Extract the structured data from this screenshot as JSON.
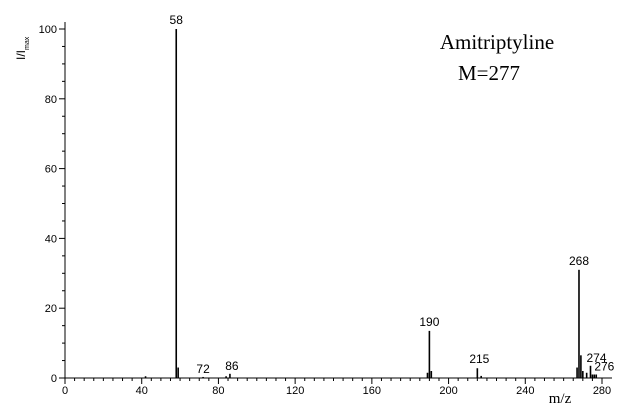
{
  "chart_data": {
    "type": "bar",
    "title": "Amitriptyline",
    "subtitle": "M=277",
    "xlabel": "m/z",
    "ylabel_main": "I/I",
    "ylabel_sub": "max",
    "xlim": [
      0,
      285
    ],
    "ylim": [
      0,
      100
    ],
    "xticks": [
      0,
      40,
      80,
      120,
      160,
      200,
      240,
      280
    ],
    "yticks": [
      0,
      20,
      40,
      60,
      80,
      100
    ],
    "xtick_labels": [
      "0",
      "40",
      "80",
      "120",
      "160",
      "200",
      "240",
      "280"
    ],
    "ytick_labels": [
      "0",
      "20",
      "40",
      "60",
      "80",
      "100"
    ],
    "grid": false,
    "peaks": [
      {
        "mz": 42,
        "intensity": 0.5
      },
      {
        "mz": 58,
        "intensity": 100,
        "label": "58"
      },
      {
        "mz": 59,
        "intensity": 3
      },
      {
        "mz": 72,
        "intensity": 0.3,
        "label": "72"
      },
      {
        "mz": 84,
        "intensity": 0.5
      },
      {
        "mz": 86,
        "intensity": 1.2,
        "label": "86"
      },
      {
        "mz": 189,
        "intensity": 1.5
      },
      {
        "mz": 190,
        "intensity": 13.5,
        "label": "190"
      },
      {
        "mz": 191,
        "intensity": 2
      },
      {
        "mz": 215,
        "intensity": 2.8,
        "label": "215"
      },
      {
        "mz": 217,
        "intensity": 0.6
      },
      {
        "mz": 267,
        "intensity": 3
      },
      {
        "mz": 268,
        "intensity": 31,
        "label": "268"
      },
      {
        "mz": 269,
        "intensity": 6.5
      },
      {
        "mz": 270,
        "intensity": 2
      },
      {
        "mz": 272,
        "intensity": 1.5
      },
      {
        "mz": 274,
        "intensity": 3.5,
        "label": "274"
      },
      {
        "mz": 275,
        "intensity": 1
      },
      {
        "mz": 276,
        "intensity": 1,
        "label": "276"
      },
      {
        "mz": 277,
        "intensity": 1
      }
    ]
  }
}
